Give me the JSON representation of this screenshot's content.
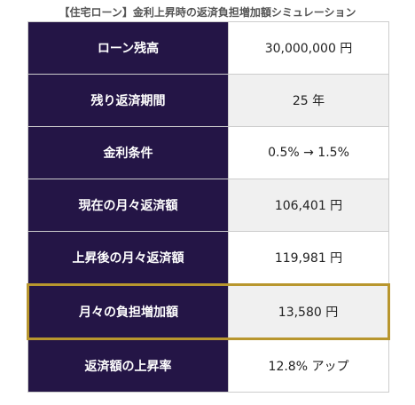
{
  "header": {
    "title": "【住宅ローン】金利上昇時の返済負担増加額シミュレーション"
  },
  "table": {
    "rows": [
      [
        "ローン残高",
        "30,000,000 円"
      ],
      [
        "残り返済期間",
        "25 年"
      ],
      [
        "金利条件",
        "0.5% → 1.5%"
      ],
      [
        "現在の月々返済額",
        "106,401 円"
      ],
      [
        "上昇後の月々返済額",
        "119,981 円"
      ],
      [
        "月々の負担増加額",
        "13,580 円"
      ],
      [
        "返済額の上昇率",
        "12.8% アップ"
      ]
    ]
  }
}
